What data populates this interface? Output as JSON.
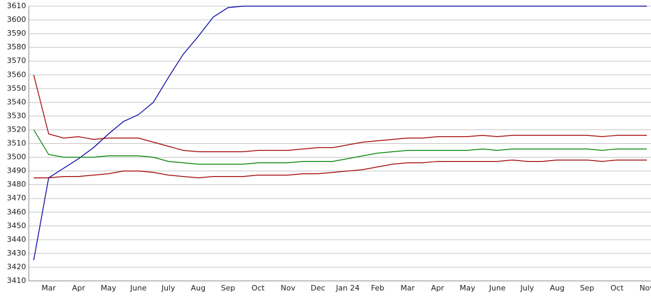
{
  "chart_data": {
    "type": "line",
    "categories": [
      null,
      "Mar",
      null,
      "Apr",
      null,
      "May",
      null,
      "June",
      null,
      "July",
      null,
      "Aug",
      null,
      "Sep",
      null,
      "Oct",
      null,
      "Nov",
      null,
      "Dec",
      null,
      "Jan 24",
      null,
      "Feb",
      null,
      "Mar",
      null,
      "Apr",
      null,
      "May",
      null,
      "June",
      null,
      "July",
      null,
      "Aug",
      null,
      "Sep",
      null,
      "Oct",
      null,
      "Nov"
    ],
    "series": [
      {
        "color": "#0000a0",
        "values": [
          3425,
          3485,
          3492,
          3499,
          3507,
          3517,
          3526,
          3531,
          3540,
          3558,
          3575,
          3588,
          3602,
          3609,
          3610,
          3610,
          3610,
          3610,
          3610,
          3610,
          3610,
          3610,
          3610,
          3610,
          3610,
          3610,
          3610,
          3610,
          3610,
          3610,
          3610,
          3610,
          3610,
          3610,
          3610,
          3610,
          3610,
          3610,
          3610,
          3610,
          3610,
          3610
        ]
      },
      {
        "color": "#a00000",
        "values": [
          3560,
          3517,
          3514,
          3515,
          3513,
          3514,
          3514,
          3514,
          3511,
          3508,
          3505,
          3504,
          3504,
          3504,
          3504,
          3505,
          3505,
          3505,
          3506,
          3507,
          3507,
          3509,
          3511,
          3512,
          3513,
          3514,
          3514,
          3515,
          3515,
          3515,
          3516,
          3515,
          3516,
          3516,
          3516,
          3516,
          3516,
          3516,
          3515,
          3516,
          3516,
          3516
        ]
      },
      {
        "color": "#008000",
        "values": [
          3520,
          3502,
          3500,
          3500,
          3500,
          3501,
          3501,
          3501,
          3500,
          3497,
          3496,
          3495,
          3495,
          3495,
          3495,
          3496,
          3496,
          3496,
          3497,
          3497,
          3497,
          3499,
          3501,
          3503,
          3504,
          3505,
          3505,
          3505,
          3505,
          3505,
          3506,
          3505,
          3506,
          3506,
          3506,
          3506,
          3506,
          3506,
          3505,
          3506,
          3506,
          3506
        ]
      },
      {
        "color": "#a00000",
        "values": [
          3485,
          3485,
          3486,
          3486,
          3487,
          3488,
          3490,
          3490,
          3489,
          3487,
          3486,
          3485,
          3486,
          3486,
          3486,
          3487,
          3487,
          3487,
          3488,
          3488,
          3489,
          3490,
          3491,
          3493,
          3495,
          3496,
          3496,
          3497,
          3497,
          3497,
          3497,
          3497,
          3498,
          3497,
          3497,
          3498,
          3498,
          3498,
          3497,
          3498,
          3498,
          3498
        ]
      }
    ],
    "ylim": [
      3410,
      3610
    ],
    "yticks": [
      3410,
      3420,
      3430,
      3440,
      3450,
      3460,
      3470,
      3480,
      3490,
      3500,
      3510,
      3520,
      3530,
      3540,
      3550,
      3560,
      3570,
      3580,
      3590,
      3600,
      3610
    ],
    "grid": true
  }
}
